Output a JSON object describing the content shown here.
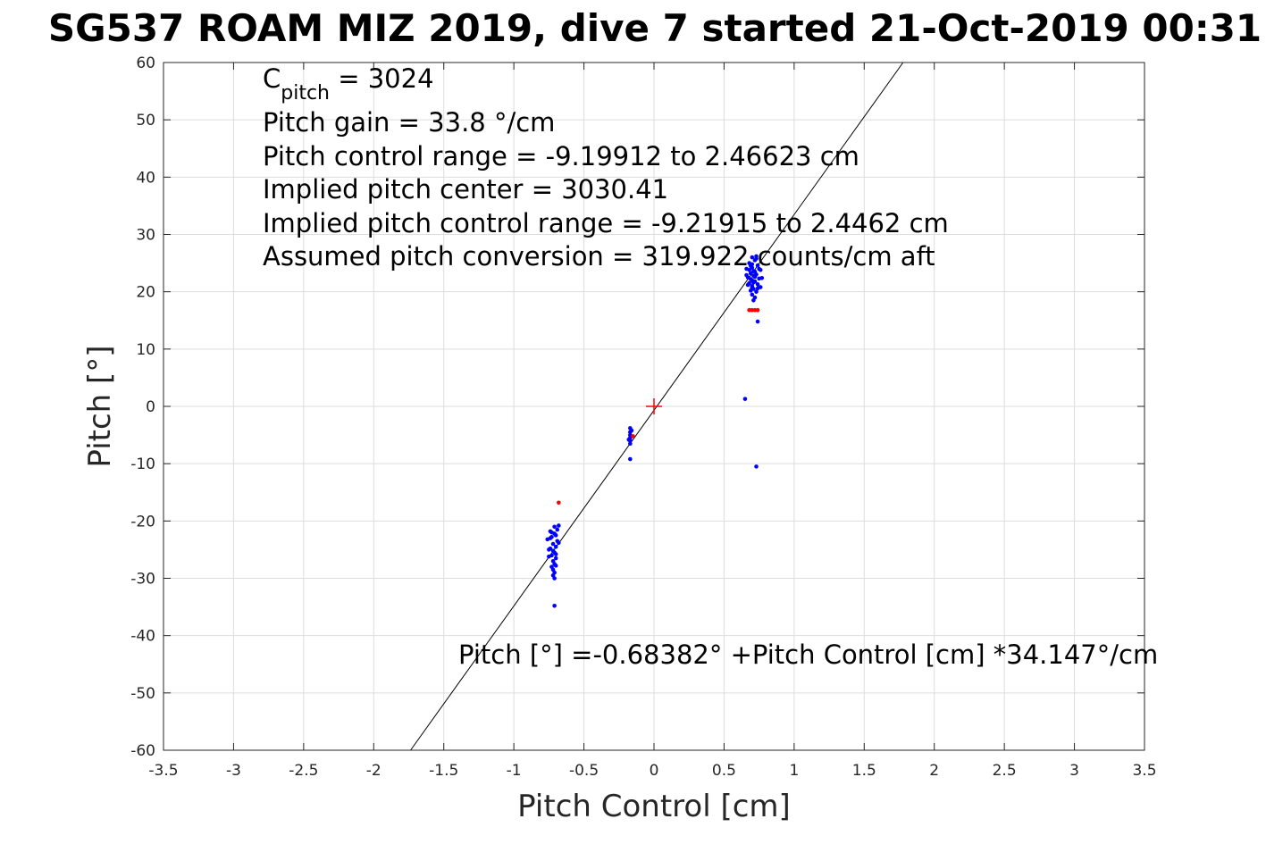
{
  "chart_data": {
    "type": "scatter",
    "title": "SG537 ROAM MIZ 2019, dive 7 started 21-Oct-2019 00:31",
    "xlabel": "Pitch Control [cm]",
    "ylabel": "Pitch [°]",
    "xlim": [
      -3.5,
      3.5
    ],
    "ylim": [
      -60,
      60
    ],
    "xticks": [
      -3.5,
      -3,
      -2.5,
      -2,
      -1.5,
      -1,
      -0.5,
      0,
      0.5,
      1,
      1.5,
      2,
      2.5,
      3,
      3.5
    ],
    "xtick_labels": [
      "-3.5",
      "-3",
      "-2.5",
      "-2",
      "-1.5",
      "-1",
      "-0.5",
      "0",
      "0.5",
      "1",
      "1.5",
      "2",
      "2.5",
      "3",
      "3.5"
    ],
    "yticks": [
      -60,
      -50,
      -40,
      -30,
      -20,
      -10,
      0,
      10,
      20,
      30,
      40,
      50,
      60
    ],
    "ytick_labels": [
      "-60",
      "-50",
      "-40",
      "-30",
      "-20",
      "-10",
      "0",
      "10",
      "20",
      "30",
      "40",
      "50",
      "60"
    ],
    "grid": true,
    "fit_line": {
      "intercept": -0.68382,
      "slope": 34.147,
      "color": "#000000"
    },
    "center_marker": {
      "x": 0,
      "y": 0,
      "color": "#ff0000"
    },
    "series": [
      {
        "color": "#0000ff",
        "points": [
          [
            0.7,
            26.0
          ],
          [
            0.72,
            25.5
          ],
          [
            0.68,
            25.0
          ],
          [
            0.74,
            24.6
          ],
          [
            0.7,
            24.2
          ],
          [
            0.66,
            24.0
          ],
          [
            0.76,
            23.8
          ],
          [
            0.72,
            23.5
          ],
          [
            0.69,
            23.2
          ],
          [
            0.73,
            23.0
          ],
          [
            0.71,
            22.8
          ],
          [
            0.67,
            22.5
          ],
          [
            0.75,
            22.3
          ],
          [
            0.7,
            22.0
          ],
          [
            0.72,
            21.8
          ],
          [
            0.68,
            21.5
          ],
          [
            0.74,
            21.3
          ],
          [
            0.7,
            21.0
          ],
          [
            0.76,
            20.8
          ],
          [
            0.71,
            20.5
          ],
          [
            0.69,
            20.2
          ],
          [
            0.73,
            20.0
          ],
          [
            0.7,
            19.5
          ],
          [
            0.72,
            19.0
          ],
          [
            0.71,
            18.5
          ],
          [
            0.7,
            24.8
          ],
          [
            0.73,
            25.8
          ],
          [
            0.69,
            22.2
          ],
          [
            0.74,
            20.6
          ],
          [
            0.67,
            21.2
          ],
          [
            0.75,
            24.0
          ],
          [
            0.71,
            23.6
          ],
          [
            0.72,
            22.6
          ],
          [
            0.68,
            23.8
          ],
          [
            0.7,
            20.7
          ],
          [
            0.77,
            22.4
          ],
          [
            0.66,
            22.9
          ],
          [
            0.73,
            26.2
          ],
          [
            0.71,
            21.6
          ],
          [
            0.69,
            24.5
          ],
          [
            0.74,
            14.8
          ],
          [
            0.65,
            1.3
          ],
          [
            0.73,
            -10.5
          ],
          [
            -0.17,
            -3.8
          ],
          [
            -0.17,
            -4.5
          ],
          [
            -0.17,
            -5.0
          ],
          [
            -0.17,
            -5.5
          ],
          [
            -0.17,
            -6.0
          ],
          [
            -0.17,
            -6.5
          ],
          [
            -0.16,
            -4.2
          ],
          [
            -0.18,
            -5.8
          ],
          [
            -0.17,
            -9.2
          ],
          [
            -0.71,
            -21.0
          ],
          [
            -0.68,
            -20.8
          ],
          [
            -0.73,
            -22.0
          ],
          [
            -0.7,
            -22.5
          ],
          [
            -0.74,
            -23.0
          ],
          [
            -0.69,
            -23.5
          ],
          [
            -0.72,
            -24.0
          ],
          [
            -0.7,
            -24.5
          ],
          [
            -0.75,
            -25.0
          ],
          [
            -0.71,
            -25.5
          ],
          [
            -0.73,
            -26.0
          ],
          [
            -0.7,
            -26.5
          ],
          [
            -0.72,
            -27.0
          ],
          [
            -0.71,
            -27.5
          ],
          [
            -0.73,
            -28.0
          ],
          [
            -0.72,
            -28.5
          ],
          [
            -0.71,
            -29.0
          ],
          [
            -0.72,
            -29.5
          ],
          [
            -0.71,
            -30.0
          ],
          [
            -0.76,
            -23.2
          ],
          [
            -0.69,
            -21.5
          ],
          [
            -0.74,
            -24.8
          ],
          [
            -0.7,
            -25.8
          ],
          [
            -0.73,
            -22.8
          ],
          [
            -0.68,
            -23.8
          ],
          [
            -0.75,
            -26.2
          ],
          [
            -0.71,
            -22.2
          ],
          [
            -0.72,
            -25.2
          ],
          [
            -0.7,
            -27.8
          ],
          [
            -0.74,
            -21.8
          ],
          [
            -0.71,
            -34.8
          ]
        ]
      },
      {
        "color": "#ff0000",
        "points": [
          [
            0.68,
            16.8
          ],
          [
            0.7,
            16.8
          ],
          [
            0.72,
            16.8
          ],
          [
            0.74,
            16.8
          ],
          [
            -0.68,
            -16.8
          ],
          [
            -0.15,
            -5.2
          ]
        ]
      }
    ],
    "annotations": {
      "cpitch_base": "C",
      "cpitch_sub": "pitch",
      "cpitch_rest": " = 3024",
      "lines": [
        "Pitch gain = 33.8 °/cm",
        "Pitch control range = -9.19912 to 2.46623 cm",
        "Implied pitch center = 3030.41",
        "Implied pitch control range = -9.21915 to 2.4462 cm",
        "Assumed pitch conversion = 319.922 counts/cm aft"
      ],
      "fit_equation": "Pitch [°] =-0.68382° +Pitch Control [cm] *34.147°/cm"
    }
  }
}
